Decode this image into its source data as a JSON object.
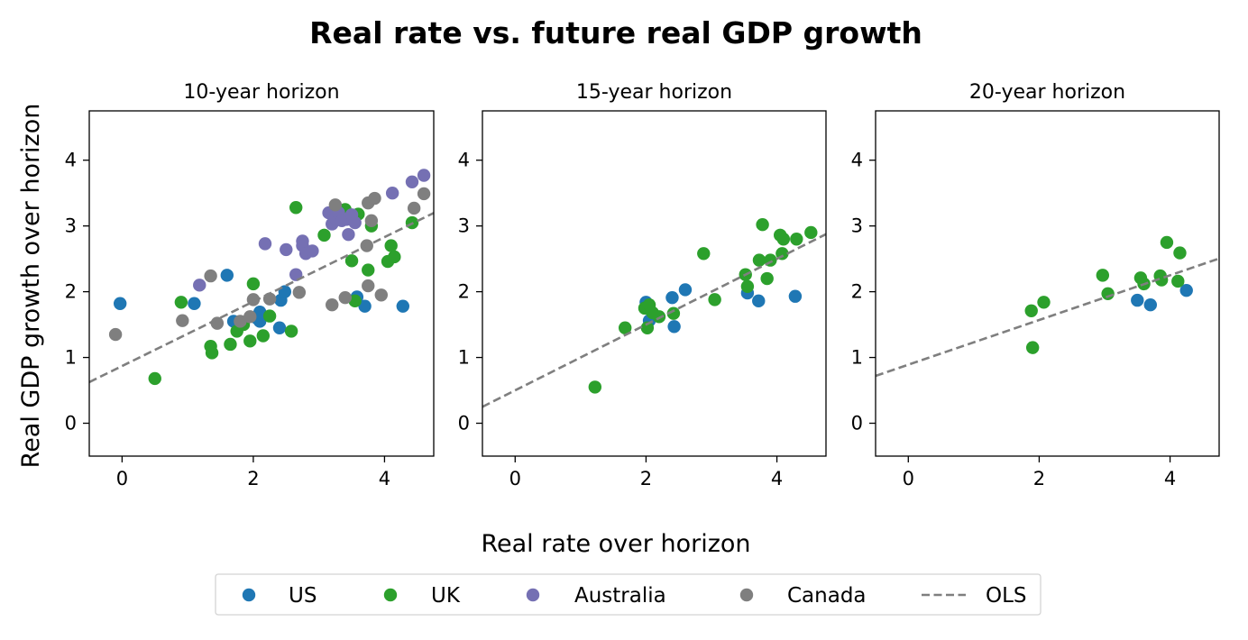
{
  "title": "Real rate vs. future real GDP growth",
  "xlabel": "Real rate over horizon",
  "ylabel": "Real GDP growth over horizon",
  "colors": {
    "US": "#1f77b4",
    "UK": "#2ca02c",
    "Australia": "#7570b3",
    "Canada": "#7f7f7f",
    "OLS": "#7f7f7f"
  },
  "legend": {
    "placement": "bottom-center",
    "entries": [
      {
        "label": "US",
        "marker": "dot",
        "color": "#1f77b4"
      },
      {
        "label": "UK",
        "marker": "dot",
        "color": "#2ca02c"
      },
      {
        "label": "Australia",
        "marker": "dot",
        "color": "#7570b3"
      },
      {
        "label": "Canada",
        "marker": "dot",
        "color": "#7f7f7f"
      },
      {
        "label": "OLS",
        "marker": "dashed-line",
        "color": "#7f7f7f"
      }
    ]
  },
  "chart_data": [
    {
      "type": "scatter",
      "title": "10-year horizon",
      "xlim": [
        -0.5,
        4.75
      ],
      "ylim": [
        -0.5,
        4.75
      ],
      "xticks": [
        0,
        2,
        4
      ],
      "yticks": [
        0,
        1,
        2,
        3,
        4
      ],
      "grid": false,
      "series": [
        {
          "name": "US",
          "points": [
            [
              -0.03,
              1.82
            ],
            [
              1.1,
              1.82
            ],
            [
              1.6,
              2.25
            ],
            [
              1.7,
              1.55
            ],
            [
              2.05,
              1.6
            ],
            [
              2.1,
              1.55
            ],
            [
              2.1,
              1.69
            ],
            [
              2.4,
              1.45
            ],
            [
              2.42,
              1.87
            ],
            [
              2.48,
              2.0
            ],
            [
              3.58,
              1.92
            ],
            [
              3.7,
              1.78
            ],
            [
              4.28,
              1.78
            ]
          ]
        },
        {
          "name": "UK",
          "points": [
            [
              0.5,
              0.68
            ],
            [
              0.9,
              1.84
            ],
            [
              1.35,
              1.17
            ],
            [
              1.37,
              1.07
            ],
            [
              1.65,
              1.2
            ],
            [
              1.75,
              1.4
            ],
            [
              1.85,
              1.5
            ],
            [
              1.95,
              1.25
            ],
            [
              2.0,
              2.12
            ],
            [
              2.15,
              1.33
            ],
            [
              2.25,
              1.63
            ],
            [
              2.58,
              1.4
            ],
            [
              2.65,
              3.28
            ],
            [
              3.08,
              2.86
            ],
            [
              3.4,
              3.25
            ],
            [
              3.5,
              2.47
            ],
            [
              3.55,
              1.86
            ],
            [
              3.6,
              3.18
            ],
            [
              3.75,
              2.33
            ],
            [
              3.8,
              3.0
            ],
            [
              4.05,
              2.46
            ],
            [
              4.1,
              2.7
            ],
            [
              4.15,
              2.53
            ],
            [
              4.42,
              3.05
            ]
          ]
        },
        {
          "name": "Australia",
          "points": [
            [
              1.18,
              2.1
            ],
            [
              2.18,
              2.73
            ],
            [
              2.5,
              2.64
            ],
            [
              2.65,
              2.26
            ],
            [
              2.75,
              2.7
            ],
            [
              2.75,
              2.77
            ],
            [
              2.8,
              2.58
            ],
            [
              2.9,
              2.62
            ],
            [
              3.15,
              3.2
            ],
            [
              3.2,
              3.03
            ],
            [
              3.25,
              3.12
            ],
            [
              3.3,
              3.2
            ],
            [
              3.35,
              3.08
            ],
            [
              3.42,
              3.1
            ],
            [
              3.45,
              2.87
            ],
            [
              3.5,
              3.17
            ],
            [
              3.55,
              3.05
            ],
            [
              4.12,
              3.5
            ],
            [
              4.42,
              3.67
            ],
            [
              4.6,
              3.77
            ]
          ]
        },
        {
          "name": "Canada",
          "points": [
            [
              -0.1,
              1.35
            ],
            [
              0.92,
              1.56
            ],
            [
              1.35,
              2.24
            ],
            [
              1.45,
              1.52
            ],
            [
              1.8,
              1.55
            ],
            [
              1.95,
              1.62
            ],
            [
              2.0,
              1.88
            ],
            [
              2.25,
              1.89
            ],
            [
              2.7,
              1.99
            ],
            [
              3.2,
              1.8
            ],
            [
              3.25,
              3.32
            ],
            [
              3.4,
              1.91
            ],
            [
              3.73,
              2.7
            ],
            [
              3.75,
              3.35
            ],
            [
              3.75,
              2.09
            ],
            [
              3.8,
              3.08
            ],
            [
              3.85,
              3.42
            ],
            [
              3.95,
              1.95
            ],
            [
              4.45,
              3.27
            ],
            [
              4.6,
              3.49
            ]
          ]
        }
      ],
      "ols": {
        "intercept": 0.87,
        "slope": 0.49
      }
    },
    {
      "type": "scatter",
      "title": "15-year horizon",
      "xlim": [
        -0.5,
        4.75
      ],
      "ylim": [
        -0.5,
        4.75
      ],
      "xticks": [
        0,
        2,
        4
      ],
      "yticks": [
        0,
        1,
        2,
        3,
        4
      ],
      "grid": false,
      "series": [
        {
          "name": "US",
          "points": [
            [
              2.0,
              1.84
            ],
            [
              2.05,
              1.56
            ],
            [
              2.4,
              1.91
            ],
            [
              2.43,
              1.47
            ],
            [
              2.6,
              2.03
            ],
            [
              3.55,
              1.98
            ],
            [
              3.72,
              1.86
            ],
            [
              4.28,
              1.93
            ]
          ]
        },
        {
          "name": "UK",
          "points": [
            [
              1.22,
              0.55
            ],
            [
              1.68,
              1.45
            ],
            [
              1.98,
              1.75
            ],
            [
              2.02,
              1.45
            ],
            [
              2.05,
              1.8
            ],
            [
              2.1,
              1.68
            ],
            [
              2.2,
              1.62
            ],
            [
              2.42,
              1.67
            ],
            [
              2.88,
              2.58
            ],
            [
              3.05,
              1.88
            ],
            [
              3.52,
              2.26
            ],
            [
              3.55,
              2.08
            ],
            [
              3.73,
              2.48
            ],
            [
              3.78,
              3.02
            ],
            [
              3.85,
              2.2
            ],
            [
              3.9,
              2.48
            ],
            [
              4.05,
              2.86
            ],
            [
              4.08,
              2.58
            ],
            [
              4.1,
              2.8
            ],
            [
              4.3,
              2.8
            ],
            [
              4.52,
              2.9
            ]
          ]
        }
      ],
      "ols": {
        "intercept": 0.5,
        "slope": 0.5
      }
    },
    {
      "type": "scatter",
      "title": "20-year horizon",
      "xlim": [
        -0.5,
        4.75
      ],
      "ylim": [
        -0.5,
        4.75
      ],
      "xticks": [
        0,
        2,
        4
      ],
      "yticks": [
        0,
        1,
        2,
        3,
        4
      ],
      "grid": false,
      "series": [
        {
          "name": "US",
          "points": [
            [
              3.5,
              1.87
            ],
            [
              3.7,
              1.8
            ],
            [
              4.25,
              2.02
            ]
          ]
        },
        {
          "name": "UK",
          "points": [
            [
              1.88,
              1.71
            ],
            [
              1.9,
              1.15
            ],
            [
              2.07,
              1.84
            ],
            [
              2.97,
              2.25
            ],
            [
              3.05,
              1.97
            ],
            [
              3.55,
              2.21
            ],
            [
              3.6,
              2.12
            ],
            [
              3.85,
              2.24
            ],
            [
              3.87,
              2.18
            ],
            [
              3.95,
              2.75
            ],
            [
              4.12,
              2.16
            ],
            [
              4.15,
              2.59
            ]
          ]
        }
      ],
      "ols": {
        "intercept": 0.89,
        "slope": 0.34
      }
    }
  ]
}
